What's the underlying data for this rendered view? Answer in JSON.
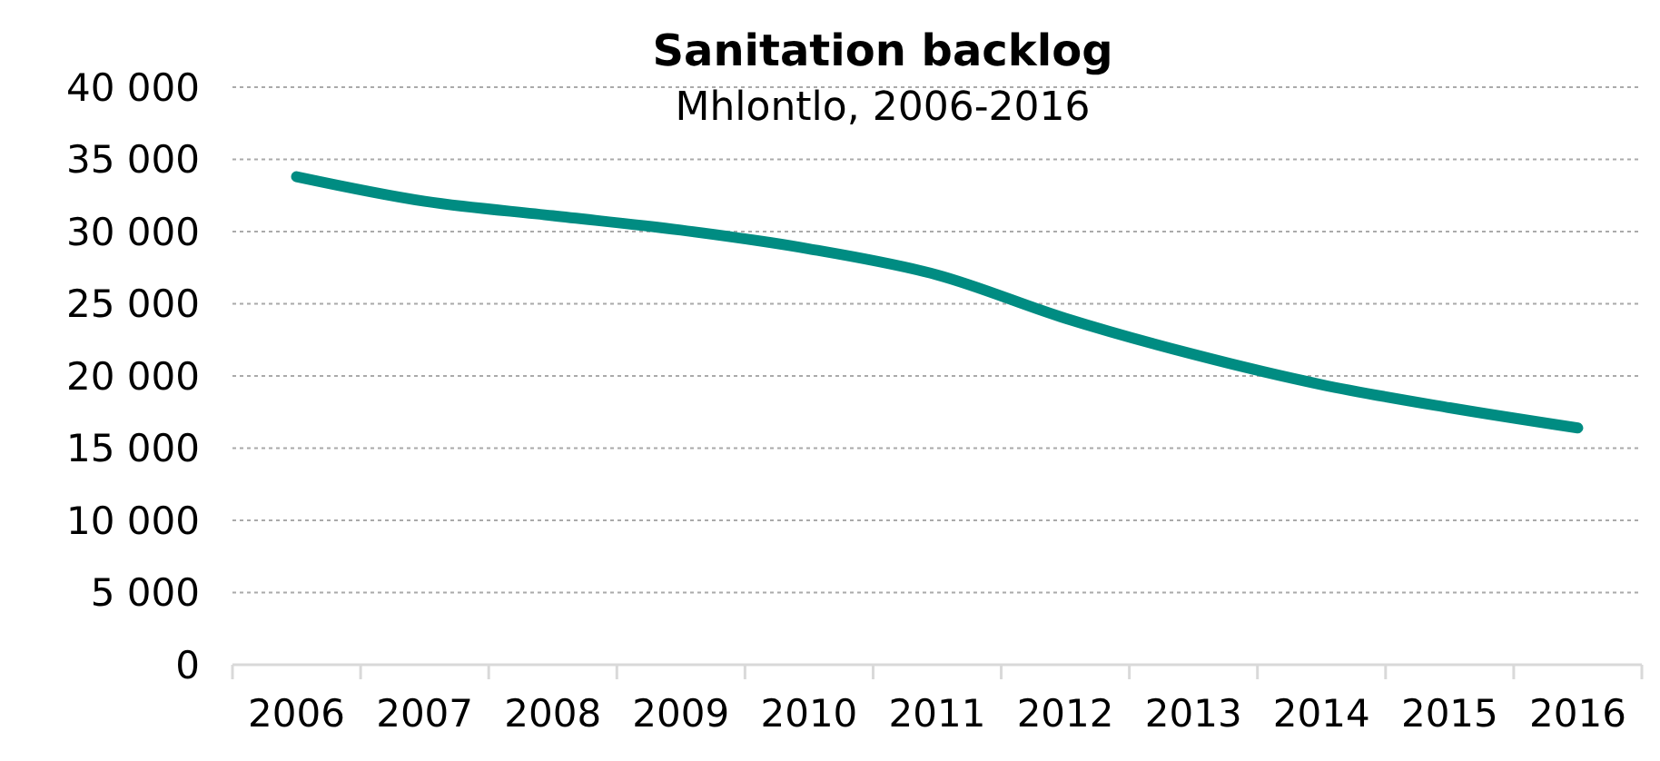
{
  "chart_data": {
    "type": "line",
    "title": "Sanitation backlog",
    "subtitle": "Mhlontlo, 2006-2016",
    "categories": [
      "2006",
      "2007",
      "2008",
      "2009",
      "2010",
      "2011",
      "2012",
      "2013",
      "2014",
      "2015",
      "2016"
    ],
    "series": [
      {
        "color": "#008c82",
        "values": [
          33800,
          32100,
          31100,
          30100,
          28800,
          27000,
          24000,
          21500,
          19400,
          17800,
          16400
        ]
      }
    ],
    "ylim": [
      0,
      40000
    ],
    "yticks": [
      {
        "value": 0,
        "label": "0"
      },
      {
        "value": 5000,
        "label": "5 000"
      },
      {
        "value": 10000,
        "label": "10 000"
      },
      {
        "value": 15000,
        "label": "15 000"
      },
      {
        "value": 20000,
        "label": "20 000"
      },
      {
        "value": 25000,
        "label": "25 000"
      },
      {
        "value": 30000,
        "label": "30 000"
      },
      {
        "value": 35000,
        "label": "35 000"
      },
      {
        "value": 40000,
        "label": "40 000"
      }
    ],
    "grid": "y",
    "marker": "none",
    "line_style": "solid"
  }
}
